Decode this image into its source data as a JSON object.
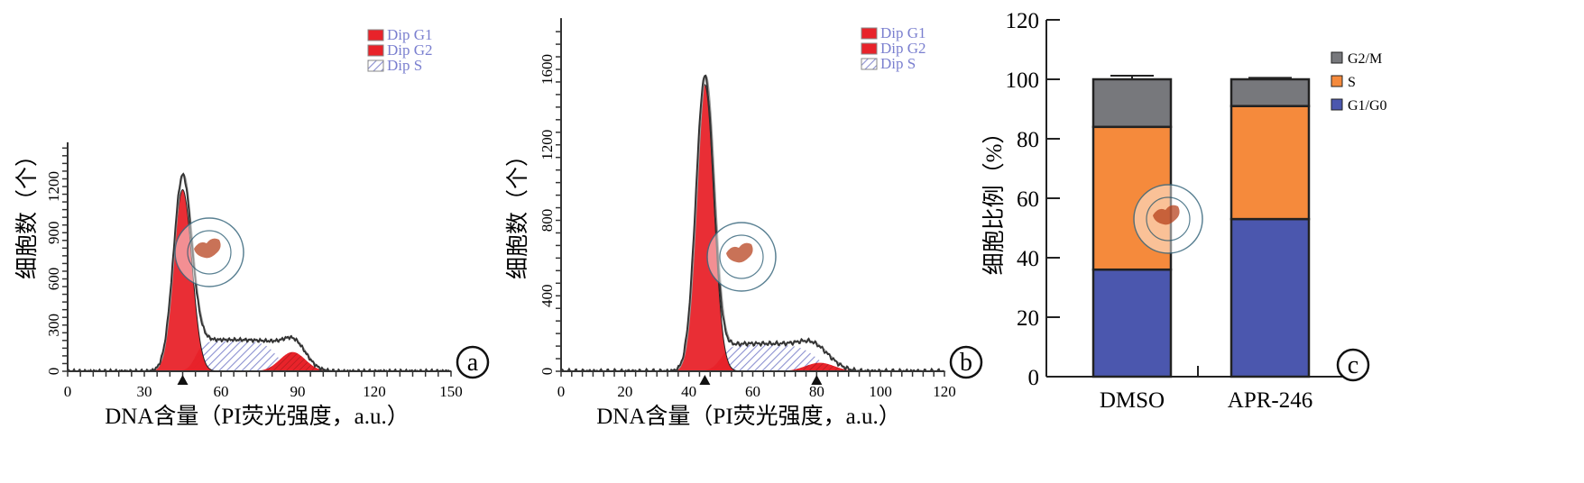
{
  "colors": {
    "g1": "#e8232a",
    "s_hatch": "#8a8fd0",
    "legend_text": "#7a7fcf",
    "gm": "#77787c",
    "s": "#f58a3c",
    "g1g0": "#4b57ae",
    "stamp": "#c05a3a"
  },
  "chart_data": [
    {
      "type": "area",
      "panel_label": "a",
      "title": "",
      "xlabel": "DNA含量（PI荧光强度，a.u.）",
      "ylabel": "细胞数（个）",
      "xlim": [
        0,
        150
      ],
      "ylim": [
        0,
        1400
      ],
      "xticks": [
        0,
        30,
        60,
        90,
        120,
        150
      ],
      "yticks": [
        0,
        300,
        600,
        900,
        1200
      ],
      "legend": [
        "Dip G1",
        "Dip G2",
        "Dip S"
      ],
      "legend_position": "top-right",
      "components": {
        "g1": {
          "mean": 45,
          "sd": 3.6,
          "peak": 1180
        },
        "g2": {
          "mean": 88,
          "sd": 5,
          "peak": 125
        },
        "s": {
          "start": 50,
          "end": 82,
          "level": 195
        }
      },
      "markers": [
        45
      ],
      "observed_peak": 1270
    },
    {
      "type": "area",
      "panel_label": "b",
      "title": "",
      "xlabel": "DNA含量（PI荧光强度，a.u.）",
      "ylabel": "细胞数（个）",
      "xlim": [
        0,
        120
      ],
      "ylim": [
        0,
        1800
      ],
      "xticks": [
        0,
        20,
        40,
        60,
        80,
        100,
        120
      ],
      "yticks": [
        0,
        400,
        800,
        1200,
        1600
      ],
      "legend": [
        "Dip G1",
        "Dip G2",
        "Dip S"
      ],
      "legend_position": "top-right",
      "components": {
        "g1": {
          "mean": 45,
          "sd": 2.8,
          "peak": 1520
        },
        "g2": {
          "mean": 81,
          "sd": 4.5,
          "peak": 45
        },
        "s": {
          "start": 50,
          "end": 80,
          "level": 140
        }
      },
      "markers": [
        45,
        80
      ],
      "observed_peak": 1560
    },
    {
      "type": "bar",
      "stacked": true,
      "panel_label": "c",
      "xlabel": "",
      "ylabel": "细胞比例（%）",
      "ylim": [
        0,
        120
      ],
      "yticks": [
        0,
        20,
        40,
        60,
        80,
        100,
        120
      ],
      "categories": [
        "DMSO",
        "APR-246"
      ],
      "series": [
        {
          "name": "G1/G0",
          "values": [
            36,
            53
          ],
          "err": [
            1,
            0.8
          ]
        },
        {
          "name": "S",
          "values": [
            48,
            38
          ],
          "err": [
            1.5,
            1
          ]
        },
        {
          "name": "G2/M",
          "values": [
            16,
            9
          ],
          "err": [
            1.2,
            0.5
          ]
        }
      ],
      "legend_position": "top-right"
    }
  ]
}
